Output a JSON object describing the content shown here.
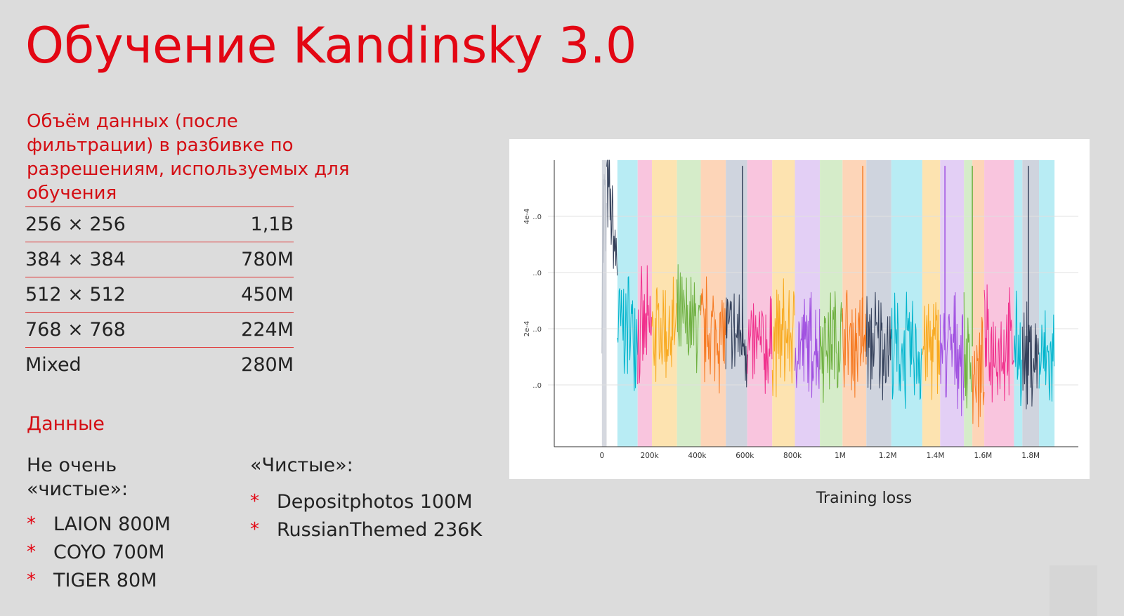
{
  "title": "Обучение Kandinsky 3.0",
  "data_volume": {
    "heading": "Объём данных (после фильтрации) в разбивке по разрешениям, используемых для обучения",
    "rows": [
      {
        "resolution": "256 × 256",
        "count": "1,1B"
      },
      {
        "resolution": "384 × 384",
        "count": "780M"
      },
      {
        "resolution": "512 × 512",
        "count": "450M"
      },
      {
        "resolution": "768 × 768",
        "count": "224M"
      },
      {
        "resolution": "Mixed",
        "count": "280M"
      }
    ]
  },
  "datasets": {
    "heading": "Данные",
    "not_clean": {
      "title": "Не очень «чистые»:",
      "items": [
        "LAION 800M",
        "COYO 700M",
        "TIGER 80M"
      ]
    },
    "clean": {
      "title": "«Чистые»:",
      "items": [
        "Depositphotos 100M",
        "RussianThemed 236K"
      ]
    },
    "bullet_symbol": "*"
  },
  "caption": "Training loss",
  "chart_data": {
    "type": "line",
    "x_ticks": [
      "0",
      "200k",
      "400k",
      "600k",
      "800k",
      "1M",
      "1.2M",
      "1.4M",
      "1.6M",
      "1.8M"
    ],
    "x_tick_values": [
      0,
      200000,
      400000,
      600000,
      800000,
      1000000,
      1200000,
      1400000,
      1600000,
      1800000
    ],
    "y_ticks": [
      "..0",
      "..0",
      "..0",
      "..0"
    ],
    "y_axis_labels": [
      "4e-4",
      "2e-4"
    ],
    "xlim": [
      -200000,
      2000000
    ],
    "grid": true,
    "segments": [
      {
        "start": 0,
        "end": 20000,
        "color": "#b9bec8",
        "band": "#d5d8df",
        "level": 0.78
      },
      {
        "start": 20000,
        "end": 65000,
        "color": "#34405a",
        "band": "#ffffff",
        "level": 0.62
      },
      {
        "start": 65000,
        "end": 150000,
        "color": "#00b4cc",
        "band": "#b8ecf4",
        "level": 0.42
      },
      {
        "start": 150000,
        "end": 210000,
        "color": "#f0308c",
        "band": "#f9c5de",
        "level": 0.4
      },
      {
        "start": 210000,
        "end": 315000,
        "color": "#f8a920",
        "band": "#fde3b0",
        "level": 0.4
      },
      {
        "start": 315000,
        "end": 415000,
        "color": "#6fb041",
        "band": "#d5ecc9",
        "level": 0.42
      },
      {
        "start": 415000,
        "end": 520000,
        "color": "#f57a22",
        "band": "#fdd5b8",
        "level": 0.4
      },
      {
        "start": 520000,
        "end": 610000,
        "color": "#34405a",
        "band": "#cfd4de",
        "level": 0.38
      },
      {
        "start": 610000,
        "end": 715000,
        "color": "#f0308c",
        "band": "#f9c5de",
        "level": 0.34
      },
      {
        "start": 715000,
        "end": 810000,
        "color": "#f8a920",
        "band": "#fde3b0",
        "level": 0.38
      },
      {
        "start": 810000,
        "end": 915000,
        "color": "#a050e0",
        "band": "#e3cff5",
        "level": 0.35
      },
      {
        "start": 915000,
        "end": 1010000,
        "color": "#6fb041",
        "band": "#d5ecc9",
        "level": 0.37
      },
      {
        "start": 1010000,
        "end": 1110000,
        "color": "#f57a22",
        "band": "#fdd5b8",
        "level": 0.37
      },
      {
        "start": 1110000,
        "end": 1215000,
        "color": "#34405a",
        "band": "#cfd4de",
        "level": 0.36
      },
      {
        "start": 1215000,
        "end": 1345000,
        "color": "#00b4cc",
        "band": "#b8ecf4",
        "level": 0.33
      },
      {
        "start": 1345000,
        "end": 1420000,
        "color": "#f8a920",
        "band": "#fde3b0",
        "level": 0.35
      },
      {
        "start": 1420000,
        "end": 1520000,
        "color": "#a050e0",
        "band": "#e3cff5",
        "level": 0.34
      },
      {
        "start": 1520000,
        "end": 1555000,
        "color": "#6fb041",
        "band": "#d5ecc9",
        "level": 0.3
      },
      {
        "start": 1555000,
        "end": 1605000,
        "color": "#f57a22",
        "band": "#fdd5b8",
        "level": 0.26
      },
      {
        "start": 1605000,
        "end": 1730000,
        "color": "#f0308c",
        "band": "#f9c5de",
        "level": 0.34
      },
      {
        "start": 1730000,
        "end": 1765000,
        "color": "#00b4cc",
        "band": "#b8ecf4",
        "level": 0.34
      },
      {
        "start": 1765000,
        "end": 1835000,
        "color": "#34405a",
        "band": "#cfd4de",
        "level": 0.3
      },
      {
        "start": 1835000,
        "end": 1900000,
        "color": "#00b4cc",
        "band": "#b8ecf4",
        "level": 0.3
      }
    ],
    "spikes": [
      {
        "x": 590000,
        "color": "#34405a"
      },
      {
        "x": 1095000,
        "color": "#f57a22"
      },
      {
        "x": 1440000,
        "color": "#a050e0"
      },
      {
        "x": 1555000,
        "color": "#6fb041"
      },
      {
        "x": 1790000,
        "color": "#34405a"
      }
    ]
  },
  "colors": {
    "accent": "#e30613",
    "background": "#dcdcdc"
  }
}
